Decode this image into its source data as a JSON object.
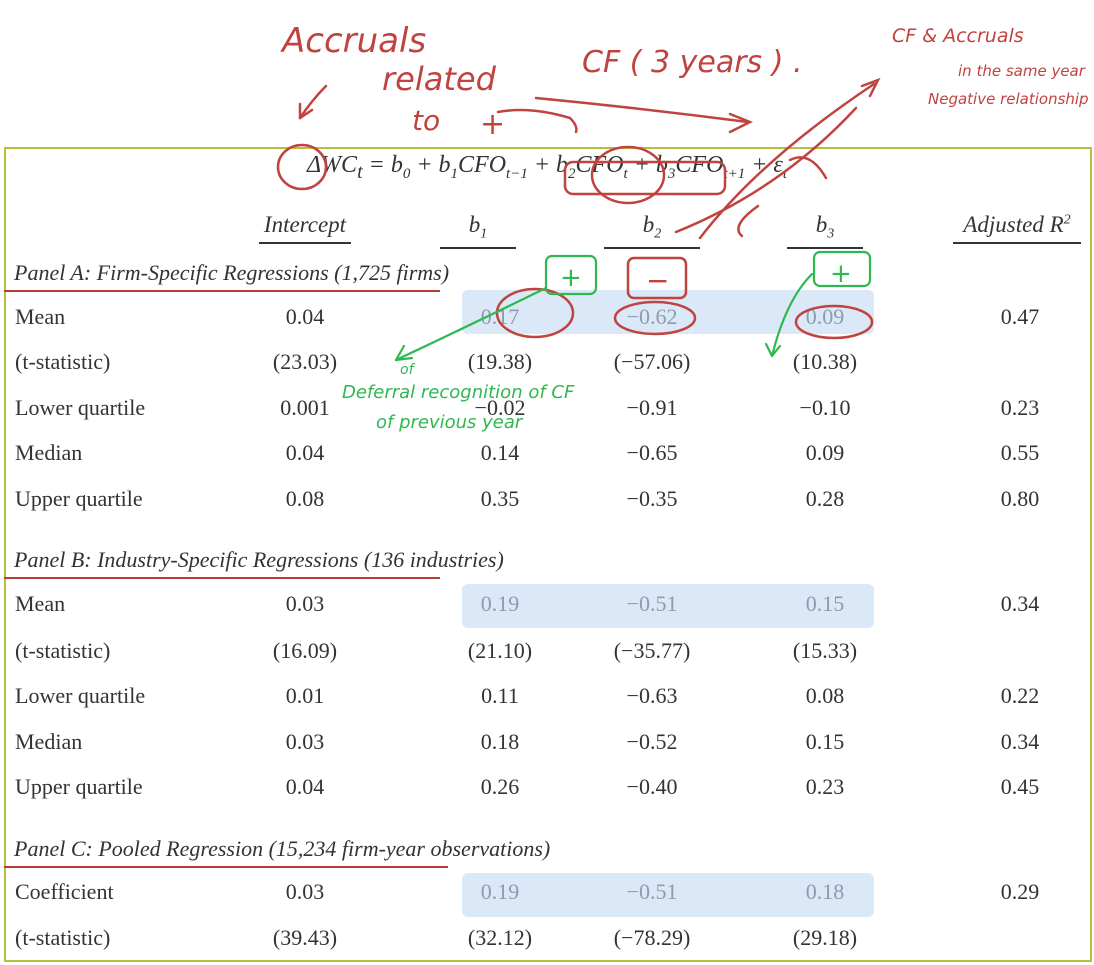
{
  "equation": {
    "lhs": "ΔWC",
    "lhs_sub": "t",
    "rhs_terms": [
      {
        "pre": " = b",
        "sub": "0",
        "post": ""
      },
      {
        "pre": " + b",
        "sub": "1",
        "post": "CFO"
      },
      {
        "pre": "",
        "sub": "t−1",
        "post": ""
      },
      {
        "pre": " + b",
        "sub": "2",
        "post": "CFO"
      },
      {
        "pre": "",
        "sub": "t",
        "post": ""
      },
      {
        "pre": " + b",
        "sub": "3",
        "post": "CFO"
      },
      {
        "pre": "",
        "sub": "t+1",
        "post": ""
      },
      {
        "pre": " + ε",
        "sub": "t",
        "post": ""
      }
    ]
  },
  "columns": {
    "intercept": "Intercept",
    "b1": "b",
    "b1_sub": "1",
    "b2": "b",
    "b2_sub": "2",
    "b3": "b",
    "b3_sub": "3",
    "adj_r2": "Adjusted R",
    "adj_r2_sup": "2"
  },
  "panels": [
    {
      "title": "Panel A: Firm-Specific Regressions (1,725 firms)",
      "rows": [
        {
          "label": "Mean",
          "intercept": "0.04",
          "b1": "0.17",
          "b2": "−0.62",
          "b3": "0.09",
          "adj_r2": "0.47"
        },
        {
          "label": "(t-statistic)",
          "intercept": "(23.03)",
          "b1": "(19.38)",
          "b2": "(−57.06)",
          "b3": "(10.38)",
          "adj_r2": ""
        },
        {
          "label": "Lower quartile",
          "intercept": "0.001",
          "b1": "−0.02",
          "b2": "−0.91",
          "b3": "−0.10",
          "adj_r2": "0.23"
        },
        {
          "label": "Median",
          "intercept": "0.04",
          "b1": "0.14",
          "b2": "−0.65",
          "b3": "0.09",
          "adj_r2": "0.55"
        },
        {
          "label": "Upper quartile",
          "intercept": "0.08",
          "b1": "0.35",
          "b2": "−0.35",
          "b3": "0.28",
          "adj_r2": "0.80"
        }
      ]
    },
    {
      "title": "Panel B: Industry-Specific Regressions (136 industries)",
      "rows": [
        {
          "label": "Mean",
          "intercept": "0.03",
          "b1": "0.19",
          "b2": "−0.51",
          "b3": "0.15",
          "adj_r2": "0.34"
        },
        {
          "label": "(t-statistic)",
          "intercept": "(16.09)",
          "b1": "(21.10)",
          "b2": "(−35.77)",
          "b3": "(15.33)",
          "adj_r2": ""
        },
        {
          "label": "Lower quartile",
          "intercept": "0.01",
          "b1": "0.11",
          "b2": "−0.63",
          "b3": "0.08",
          "adj_r2": "0.22"
        },
        {
          "label": "Median",
          "intercept": "0.03",
          "b1": "0.18",
          "b2": "−0.52",
          "b3": "0.15",
          "adj_r2": "0.34"
        },
        {
          "label": "Upper quartile",
          "intercept": "0.04",
          "b1": "0.26",
          "b2": "−0.40",
          "b3": "0.23",
          "adj_r2": "0.45"
        }
      ]
    },
    {
      "title": "Panel C: Pooled Regression (15,234 firm-year observations)",
      "rows": [
        {
          "label": "Coefficient",
          "intercept": "0.03",
          "b1": "0.19",
          "b2": "−0.51",
          "b3": "0.18",
          "adj_r2": "0.29"
        },
        {
          "label": "(t-statistic)",
          "intercept": "(39.43)",
          "b1": "(32.12)",
          "b2": "(−78.29)",
          "b3": "(29.18)",
          "adj_r2": ""
        }
      ]
    }
  ],
  "annotations": {
    "accruals": "Accruals",
    "related_to": "related",
    "to": "to",
    "plus_top": "+",
    "cf_3years": "CF ( 3 years ) .",
    "cf_accruals_1": "CF & Accruals",
    "cf_accruals_2": "in the same year",
    "cf_accruals_3": "Negative relationship .",
    "box_plus": "+",
    "box_minus": "−",
    "box_plus_right": "+",
    "green_1": "Deferral recognition of CF",
    "green_of": "of",
    "green_2": "of previous year",
    "colors": {
      "red": "#c0433f",
      "green": "#2fb84f",
      "highlight": "#dbe8f7",
      "frame": "#b6c03e"
    }
  }
}
